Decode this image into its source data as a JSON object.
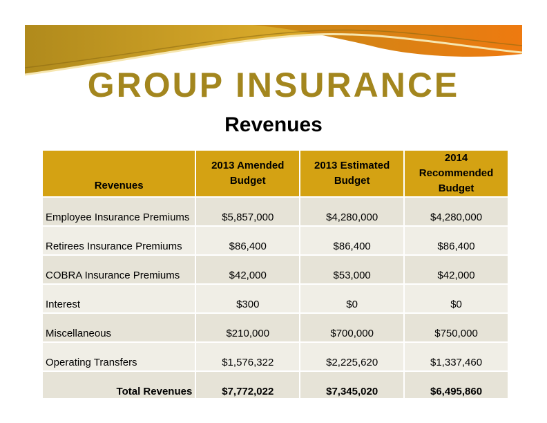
{
  "slide": {
    "title": "GROUP INSURANCE",
    "subtitle": "Revenues"
  },
  "table": {
    "headers": {
      "first": "Revenues",
      "col1_line1": "2013 Amended",
      "col1_line2": "Budget",
      "col2_line1": "2013 Estimated",
      "col2_line2": "Budget",
      "col3_line1": "2014 Recommended",
      "col3_line2": "Budget"
    },
    "rows": [
      {
        "label": "Employee Insurance Premiums",
        "amended_2013": "$5,857,000",
        "estimated_2013": "$4,280,000",
        "recommended_2014": "$4,280,000"
      },
      {
        "label": "Retirees Insurance Premiums",
        "amended_2013": "$86,400",
        "estimated_2013": "$86,400",
        "recommended_2014": "$86,400"
      },
      {
        "label": "COBRA Insurance Premiums",
        "amended_2013": "$42,000",
        "estimated_2013": "$53,000",
        "recommended_2014": "$42,000"
      },
      {
        "label": "Interest",
        "amended_2013": "$300",
        "estimated_2013": "$0",
        "recommended_2014": "$0"
      },
      {
        "label": "Miscellaneous",
        "amended_2013": "$210,000",
        "estimated_2013": "$700,000",
        "recommended_2014": "$750,000"
      },
      {
        "label": "Operating Transfers",
        "amended_2013": "$1,576,322",
        "estimated_2013": "$2,225,620",
        "recommended_2014": "$1,337,460"
      }
    ],
    "total": {
      "label": "Total Revenues",
      "amended_2013": "$7,772,022",
      "estimated_2013": "$7,345,020",
      "recommended_2014": "$6,495,860"
    }
  },
  "colors": {
    "title": "#a3861e",
    "header_bg": "#d4a213",
    "row_odd": "#e6e3d7",
    "row_even": "#f0eee6",
    "banner_gold": "#c9a227",
    "banner_orange": "#e8891a"
  }
}
